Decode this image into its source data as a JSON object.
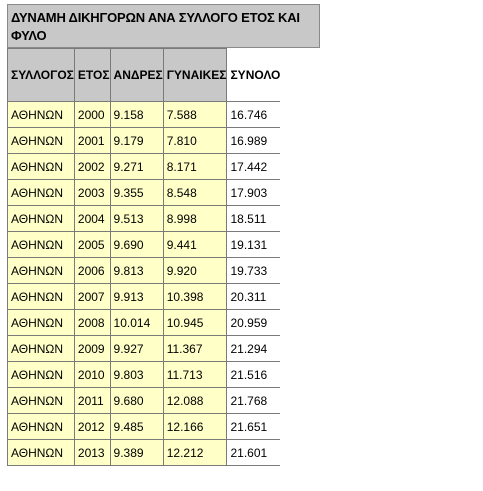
{
  "title": "ΔΥΝΑΜΗ ΔΙΚΗΓΟΡΩΝ ΑΝΑ ΣΥΛΛΟΓΟ ΕΤΟΣ ΚΑΙ ΦΥΛΟ",
  "headers": [
    "ΣΥΛΛΟΓΟΣ",
    "ΕΤΟΣ",
    "ΑΝΔΡΕΣ",
    "ΓΥΝΑΙΚΕΣ",
    "ΣΥΝΟΛΟ"
  ],
  "rows": [
    {
      "association": "ΑΘΗΝΩΝ",
      "year": "2000",
      "men": "9.158",
      "women": "7.588",
      "total": "16.746"
    },
    {
      "association": "ΑΘΗΝΩΝ",
      "year": "2001",
      "men": "9.179",
      "women": "7.810",
      "total": "16.989"
    },
    {
      "association": "ΑΘΗΝΩΝ",
      "year": "2002",
      "men": "9.271",
      "women": "8.171",
      "total": "17.442"
    },
    {
      "association": "ΑΘΗΝΩΝ",
      "year": "2003",
      "men": "9.355",
      "women": "8.548",
      "total": "17.903"
    },
    {
      "association": "ΑΘΗΝΩΝ",
      "year": "2004",
      "men": "9.513",
      "women": "8.998",
      "total": "18.511"
    },
    {
      "association": "ΑΘΗΝΩΝ",
      "year": "2005",
      "men": "9.690",
      "women": "9.441",
      "total": "19.131"
    },
    {
      "association": "ΑΘΗΝΩΝ",
      "year": "2006",
      "men": "9.813",
      "women": "9.920",
      "total": "19.733"
    },
    {
      "association": "ΑΘΗΝΩΝ",
      "year": "2007",
      "men": "9.913",
      "women": "10.398",
      "total": "20.311"
    },
    {
      "association": "ΑΘΗΝΩΝ",
      "year": "2008",
      "men": "10.014",
      "women": "10.945",
      "total": "20.959"
    },
    {
      "association": "ΑΘΗΝΩΝ",
      "year": "2009",
      "men": "9.927",
      "women": "11.367",
      "total": "21.294"
    },
    {
      "association": "ΑΘΗΝΩΝ",
      "year": "2010",
      "men": "9.803",
      "women": "11.713",
      "total": "21.516"
    },
    {
      "association": "ΑΘΗΝΩΝ",
      "year": "2011",
      "men": "9.680",
      "women": "12.088",
      "total": "21.768"
    },
    {
      "association": "ΑΘΗΝΩΝ",
      "year": "2012",
      "men": "9.485",
      "women": "12.166",
      "total": "21.651"
    },
    {
      "association": "ΑΘΗΝΩΝ",
      "year": "2013",
      "men": "9.389",
      "women": "12.212",
      "total": "21.601"
    }
  ],
  "colors": {
    "header_fill": "#c8c8c8",
    "data_fill": "#ffffc8",
    "total_fill": "#ffffff",
    "border": "#7a7a7a"
  }
}
